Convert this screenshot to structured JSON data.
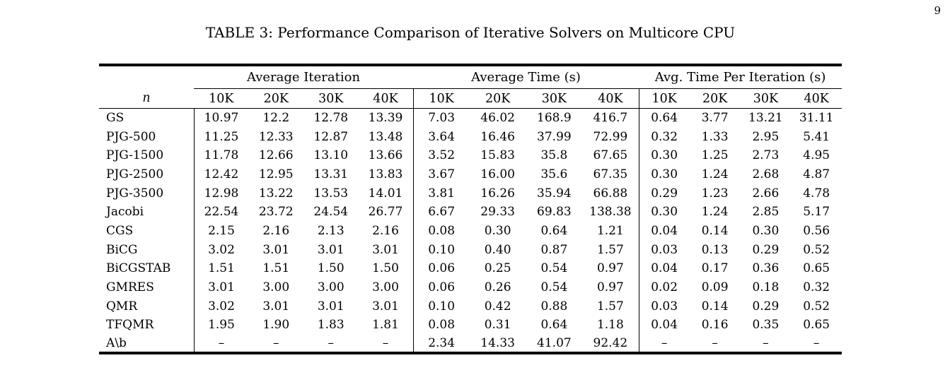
{
  "page": {
    "number": "9"
  },
  "table": {
    "caption": "TABLE 3: Performance Comparison of Iterative Solvers on Multicore CPU",
    "row_header_label": "n",
    "groups": [
      {
        "label": "Average Iteration",
        "cols": [
          "10K",
          "20K",
          "30K",
          "40K"
        ]
      },
      {
        "label": "Average Time (s)",
        "cols": [
          "10K",
          "20K",
          "30K",
          "40K"
        ]
      },
      {
        "label": "Avg. Time Per Iteration (s)",
        "cols": [
          "10K",
          "20K",
          "30K",
          "40K"
        ]
      }
    ],
    "rows": [
      {
        "label": "GS",
        "iter": [
          "10.97",
          "12.2",
          "12.78",
          "13.39"
        ],
        "time": [
          "7.03",
          "46.02",
          "168.9",
          "416.7"
        ],
        "tpi": [
          "0.64",
          "3.77",
          "13.21",
          "31.11"
        ],
        "bold": {
          "iter": true,
          "time": true,
          "tpi": true
        }
      },
      {
        "label": "PJG-500",
        "iter": [
          "11.25",
          "12.33",
          "12.87",
          "13.48"
        ],
        "time": [
          "3.64",
          "16.46",
          "37.99",
          "72.99"
        ],
        "tpi": [
          "0.32",
          "1.33",
          "2.95",
          "5.41"
        ],
        "bold": {
          "iter": false,
          "time": false,
          "tpi": false
        }
      },
      {
        "label": "PJG-1500",
        "iter": [
          "11.78",
          "12.66",
          "13.10",
          "13.66"
        ],
        "time": [
          "3.52",
          "15.83",
          "35.8",
          "67.65"
        ],
        "tpi": [
          "0.30",
          "1.25",
          "2.73",
          "4.95"
        ],
        "bold": {
          "iter": false,
          "time": false,
          "tpi": false
        }
      },
      {
        "label": "PJG-2500",
        "iter": [
          "12.42",
          "12.95",
          "13.31",
          "13.83"
        ],
        "time": [
          "3.67",
          "16.00",
          "35.6",
          "67.35"
        ],
        "tpi": [
          "0.30",
          "1.24",
          "2.68",
          "4.87"
        ],
        "bold": {
          "iter": false,
          "time": false,
          "tpi": false
        }
      },
      {
        "label": "PJG-3500",
        "iter": [
          "12.98",
          "13.22",
          "13.53",
          "14.01"
        ],
        "time": [
          "3.81",
          "16.26",
          "35.94",
          "66.88"
        ],
        "tpi": [
          "0.29",
          "1.23",
          "2.66",
          "4.78"
        ],
        "bold": {
          "iter": true,
          "time": true,
          "tpi": true
        }
      },
      {
        "label": "Jacobi",
        "iter": [
          "22.54",
          "23.72",
          "24.54",
          "26.77"
        ],
        "time": [
          "6.67",
          "29.33",
          "69.83",
          "138.38"
        ],
        "tpi": [
          "0.30",
          "1.24",
          "2.85",
          "5.17"
        ],
        "bold": {
          "iter": true,
          "time": true,
          "tpi": true
        }
      },
      {
        "label": "CGS",
        "iter": [
          "2.15",
          "2.16",
          "2.13",
          "2.16"
        ],
        "time": [
          "0.08",
          "0.30",
          "0.64",
          "1.21"
        ],
        "tpi": [
          "0.04",
          "0.14",
          "0.30",
          "0.56"
        ],
        "bold": {
          "iter": false,
          "time": false,
          "tpi": false
        }
      },
      {
        "label": "BiCG",
        "iter": [
          "3.02",
          "3.01",
          "3.01",
          "3.01"
        ],
        "time": [
          "0.10",
          "0.40",
          "0.87",
          "1.57"
        ],
        "tpi": [
          "0.03",
          "0.13",
          "0.29",
          "0.52"
        ],
        "bold": {
          "iter": false,
          "time": false,
          "tpi": false
        }
      },
      {
        "label": "BiCGSTAB",
        "iter": [
          "1.51",
          "1.51",
          "1.50",
          "1.50"
        ],
        "time": [
          "0.06",
          "0.25",
          "0.54",
          "0.97"
        ],
        "tpi": [
          "0.04",
          "0.17",
          "0.36",
          "0.65"
        ],
        "bold": {
          "iter": false,
          "time": false,
          "tpi": false
        }
      },
      {
        "label": "GMRES",
        "iter": [
          "3.01",
          "3.00",
          "3.00",
          "3.00"
        ],
        "time": [
          "0.06",
          "0.26",
          "0.54",
          "0.97"
        ],
        "tpi": [
          "0.02",
          "0.09",
          "0.18",
          "0.32"
        ],
        "bold": {
          "iter": true,
          "time": true,
          "tpi": true
        }
      },
      {
        "label": "QMR",
        "iter": [
          "3.02",
          "3.01",
          "3.01",
          "3.01"
        ],
        "time": [
          "0.10",
          "0.42",
          "0.88",
          "1.57"
        ],
        "tpi": [
          "0.03",
          "0.14",
          "0.29",
          "0.52"
        ],
        "bold": {
          "iter": false,
          "time": false,
          "tpi": false
        }
      },
      {
        "label": "TFQMR",
        "iter": [
          "1.95",
          "1.90",
          "1.83",
          "1.81"
        ],
        "time": [
          "0.08",
          "0.31",
          "0.64",
          "1.18"
        ],
        "tpi": [
          "0.04",
          "0.16",
          "0.35",
          "0.65"
        ],
        "bold": {
          "iter": false,
          "time": false,
          "tpi": false
        }
      },
      {
        "label": "A\\b",
        "iter": [
          "–",
          "–",
          "–",
          "–"
        ],
        "time": [
          "2.34",
          "14.33",
          "41.07",
          "92.42"
        ],
        "tpi": [
          "–",
          "–",
          "–",
          "–"
        ],
        "bold": {
          "iter": false,
          "time": true,
          "tpi": false
        }
      }
    ]
  }
}
